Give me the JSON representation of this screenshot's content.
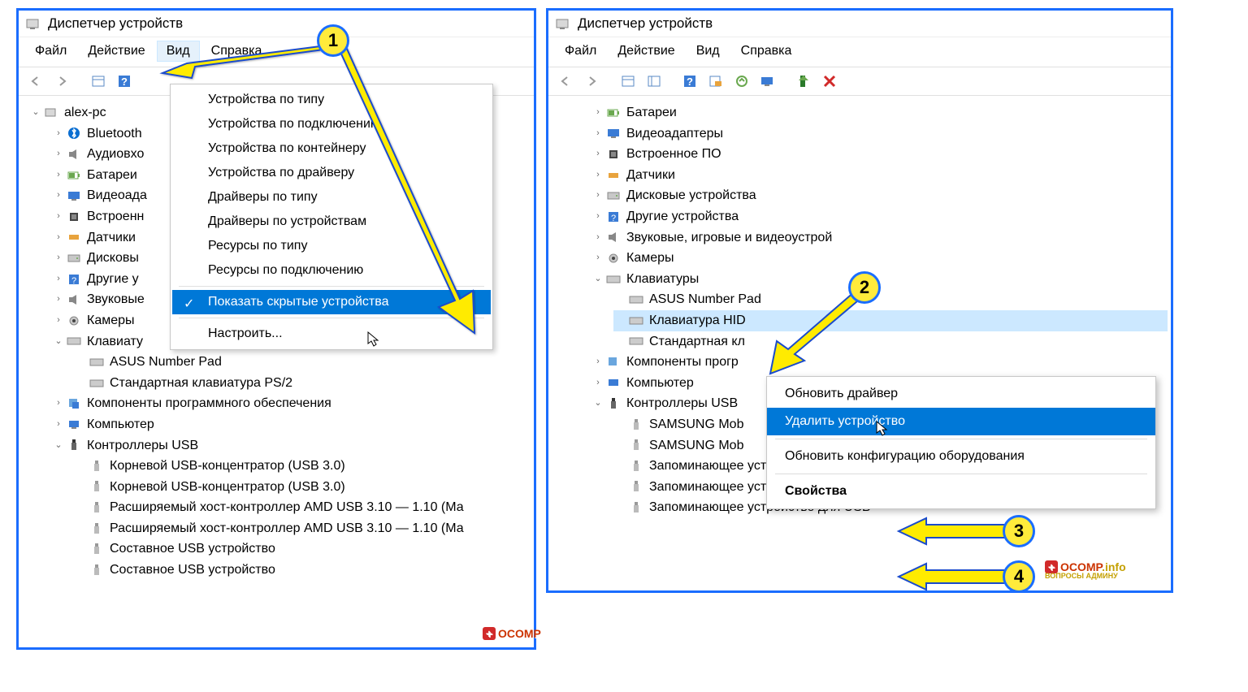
{
  "colors": {
    "panel_border": "#1a6dff",
    "highlight_bg": "#0078d7",
    "highlight_fg": "#ffffff",
    "selection_bg": "#cce8ff",
    "badge_fill": "#ffeb3b",
    "badge_border": "#1a6dff",
    "arrow_fill": "#ffeb00",
    "arrow_stroke": "#1a4bcc",
    "watermark_red": "#cc3300",
    "watermark_yellow": "#c4a000"
  },
  "window": {
    "title": "Диспетчер устройств"
  },
  "menubar": {
    "items": [
      "Файл",
      "Действие",
      "Вид",
      "Справка"
    ],
    "open_index_left": 2
  },
  "view_menu": {
    "items": [
      "Устройства по типу",
      "Устройства по подключению",
      "Устройства по контейнеру",
      "Устройства по драйверу",
      "Драйверы по типу",
      "Драйверы по устройствам",
      "Ресурсы по типу",
      "Ресурсы по подключению",
      "Показать скрытые устройства",
      "Настроить..."
    ],
    "highlight_index": 8,
    "checked_index": 8,
    "separators_after": [
      7,
      8
    ]
  },
  "left_tree": {
    "root": "alex-pc",
    "nodes": [
      {
        "label": "Bluetooth",
        "icon": "bluetooth"
      },
      {
        "label": "Аудиовхо",
        "icon": "audio"
      },
      {
        "label": "Батареи",
        "icon": "battery"
      },
      {
        "label": "Видеоада",
        "icon": "display"
      },
      {
        "label": "Встроенн",
        "icon": "chip"
      },
      {
        "label": "Датчики",
        "icon": "sensor"
      },
      {
        "label": "Дисковы",
        "icon": "disk"
      },
      {
        "label": "Другие у",
        "icon": "other"
      },
      {
        "label": "Звуковые",
        "icon": "audio"
      },
      {
        "label": "Камеры",
        "icon": "camera"
      }
    ],
    "keyboards": {
      "label": "Клавиату",
      "children": [
        "ASUS Number Pad",
        "Стандартная клавиатура PS/2"
      ]
    },
    "software": "Компоненты программного обеспечения",
    "computer": "Компьютер",
    "usb": {
      "label": "Контроллеры USB",
      "children": [
        "Корневой USB-концентратор (USB 3.0)",
        "Корневой USB-концентратор (USB 3.0)",
        "Расширяемый хост-контроллер AMD USB 3.10 — 1.10 (Ма",
        "Расширяемый хост-контроллер AMD USB 3.10 — 1.10 (Ма",
        "Составное USB устройство",
        "Составное USB устройство"
      ]
    }
  },
  "right_tree": {
    "top": [
      {
        "label": "Батареи",
        "icon": "battery"
      },
      {
        "label": "Видеоадаптеры",
        "icon": "display"
      },
      {
        "label": "Встроенное ПО",
        "icon": "chip"
      },
      {
        "label": "Датчики",
        "icon": "sensor"
      },
      {
        "label": "Дисковые устройства",
        "icon": "disk"
      },
      {
        "label": "Другие устройства",
        "icon": "other"
      },
      {
        "label": "Звуковые, игровые и видеоустрой",
        "icon": "audio"
      },
      {
        "label": "Камеры",
        "icon": "camera"
      }
    ],
    "keyboards": {
      "label": "Клавиатуры",
      "children": [
        "ASUS Number Pad",
        "Клавиатура HID",
        "Стандартная кл"
      ],
      "selected_index": 1
    },
    "software": "Компоненты прогр",
    "computer": "Компьютер",
    "usb": {
      "label": "Контроллеры USB",
      "children": [
        "SAMSUNG Mob",
        "SAMSUNG Mob",
        "Запоминающее устройство для USB",
        "Запоминающее устройство для USB",
        "Запоминающее устройство для USB"
      ]
    }
  },
  "context_menu": {
    "items": [
      {
        "label": "Обновить драйвер"
      },
      {
        "label": "Удалить устройство",
        "highlight": true
      },
      {
        "label": "Обновить конфигурацию оборудования"
      },
      {
        "label": "Свойства",
        "bold": true
      }
    ],
    "separators_after": [
      1,
      2
    ]
  },
  "badges": {
    "b1": "1",
    "b2": "2",
    "b3": "3",
    "b4": "4"
  },
  "watermark": {
    "brand": "OCOMP",
    "tld": ".info",
    "sub": "ВОПРОСЫ АДМИНУ"
  }
}
